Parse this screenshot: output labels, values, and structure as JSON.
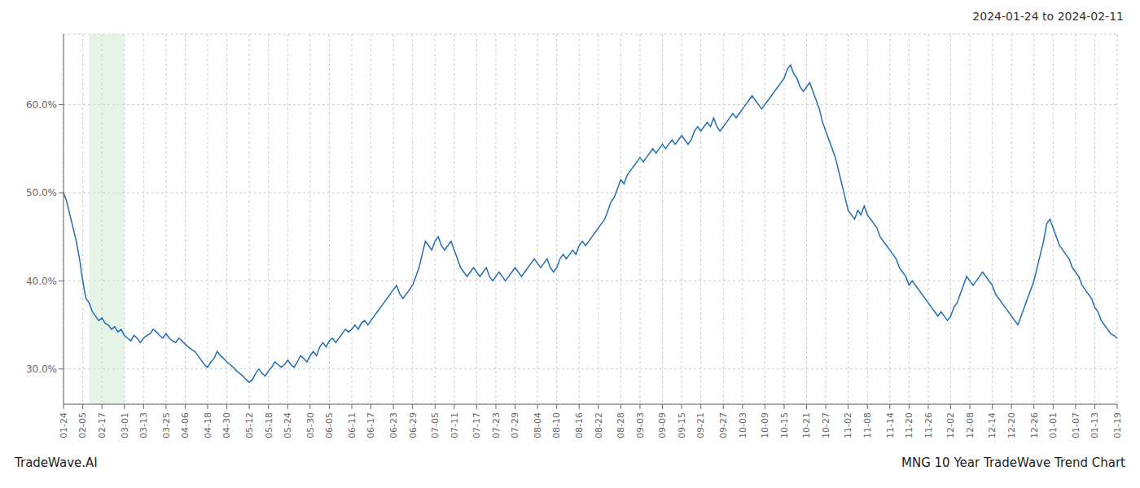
{
  "chart_data": {
    "type": "line",
    "title": "2024-01-24 to 2024-02-11",
    "annotations": [
      "TradeWave.AI",
      "MNG 10 Year TradeWave Trend Chart"
    ],
    "categories": [
      "01-24",
      null,
      null,
      null,
      null,
      null,
      "02-05",
      null,
      null,
      null,
      null,
      null,
      "02-17",
      null,
      null,
      null,
      null,
      null,
      null,
      "03-01",
      null,
      null,
      null,
      null,
      null,
      "03-13",
      null,
      null,
      null,
      null,
      null,
      null,
      "03-25",
      null,
      null,
      null,
      null,
      null,
      "04-06",
      null,
      null,
      null,
      null,
      null,
      null,
      "04-18",
      null,
      null,
      null,
      null,
      null,
      "04-30",
      null,
      null,
      null,
      null,
      null,
      null,
      "05-12",
      null,
      null,
      null,
      null,
      null,
      "05-18",
      null,
      null,
      null,
      null,
      null,
      "05-24",
      null,
      null,
      null,
      null,
      null,
      null,
      "05-30",
      null,
      null,
      null,
      null,
      null,
      "06-05",
      null,
      null,
      null,
      null,
      null,
      null,
      "06-11",
      null,
      null,
      null,
      null,
      null,
      "06-17",
      null,
      null,
      null,
      null,
      null,
      null,
      "06-23",
      null,
      null,
      null,
      null,
      null,
      "06-29",
      null,
      null,
      null,
      null,
      null,
      null,
      "07-05",
      null,
      null,
      null,
      null,
      null,
      "07-11",
      null,
      null,
      null,
      null,
      null,
      null,
      "07-17",
      null,
      null,
      null,
      null,
      null,
      "07-23",
      null,
      null,
      null,
      null,
      null,
      "07-29",
      null,
      null,
      null,
      null,
      null,
      null,
      "08-04",
      null,
      null,
      null,
      null,
      null,
      "08-10",
      null,
      null,
      null,
      null,
      null,
      null,
      "08-16",
      null,
      null,
      null,
      null,
      null,
      "08-22",
      null,
      null,
      null,
      null,
      null,
      null,
      "08-28",
      null,
      null,
      null,
      null,
      null,
      "09-03",
      null,
      null,
      null,
      null,
      null,
      null,
      "09-09",
      null,
      null,
      null,
      null,
      null,
      "09-15",
      null,
      null,
      null,
      null,
      null,
      "09-21",
      null,
      null,
      null,
      null,
      null,
      null,
      "09-27",
      null,
      null,
      null,
      null,
      null,
      "10-03",
      null,
      null,
      null,
      null,
      null,
      null,
      "10-09",
      null,
      null,
      null,
      null,
      null,
      "10-15",
      null,
      null,
      null,
      null,
      null,
      null,
      "10-21",
      null,
      null,
      null,
      null,
      null,
      "10-27",
      null,
      null,
      null,
      null,
      null,
      null,
      "11-02",
      null,
      null,
      null,
      null,
      null,
      "11-08",
      null,
      null,
      null,
      null,
      null,
      null,
      "11-14",
      null,
      null,
      null,
      null,
      null,
      "11-20",
      null,
      null,
      null,
      null,
      null,
      "11-26",
      null,
      null,
      null,
      null,
      null,
      null,
      "12-02",
      null,
      null,
      null,
      null,
      null,
      "12-08",
      null,
      null,
      null,
      null,
      null,
      null,
      "12-14",
      null,
      null,
      null,
      null,
      null,
      "12-20",
      null,
      null,
      null,
      null,
      null,
      null,
      "12-26",
      null,
      null,
      null,
      null,
      null,
      "01-01",
      null,
      null,
      null,
      null,
      null,
      null,
      "01-07",
      null,
      null,
      null,
      null,
      null,
      "01-13",
      null,
      null,
      null,
      null,
      null,
      null,
      "01-19"
    ],
    "values": [
      50.0,
      49.0,
      47.5,
      46.0,
      44.5,
      42.5,
      40.0,
      38.0,
      37.5,
      36.5,
      36.0,
      35.5,
      35.8,
      35.2,
      35.0,
      34.5,
      34.8,
      34.2,
      34.5,
      33.8,
      33.5,
      33.2,
      33.8,
      33.5,
      33.0,
      33.5,
      33.8,
      34.0,
      34.5,
      34.2,
      33.8,
      33.5,
      34.0,
      33.5,
      33.2,
      33.0,
      33.5,
      33.2,
      32.8,
      32.5,
      32.2,
      32.0,
      31.5,
      31.0,
      30.5,
      30.2,
      30.8,
      31.2,
      32.0,
      31.5,
      31.2,
      30.8,
      30.5,
      30.2,
      29.8,
      29.5,
      29.2,
      28.8,
      28.5,
      28.8,
      29.5,
      30.0,
      29.5,
      29.2,
      29.8,
      30.2,
      30.8,
      30.5,
      30.2,
      30.5,
      31.0,
      30.5,
      30.2,
      30.8,
      31.5,
      31.2,
      30.8,
      31.5,
      32.0,
      31.5,
      32.5,
      33.0,
      32.5,
      33.2,
      33.5,
      33.0,
      33.5,
      34.0,
      34.5,
      34.2,
      34.5,
      35.0,
      34.5,
      35.2,
      35.5,
      35.0,
      35.5,
      36.0,
      36.5,
      37.0,
      37.5,
      38.0,
      38.5,
      39.0,
      39.5,
      38.5,
      38.0,
      38.5,
      39.0,
      39.5,
      40.5,
      41.5,
      43.0,
      44.5,
      44.0,
      43.5,
      44.5,
      45.0,
      44.0,
      43.5,
      44.0,
      44.5,
      43.5,
      42.5,
      41.5,
      41.0,
      40.5,
      41.0,
      41.5,
      41.0,
      40.5,
      41.0,
      41.5,
      40.5,
      40.0,
      40.5,
      41.0,
      40.5,
      40.0,
      40.5,
      41.0,
      41.5,
      41.0,
      40.5,
      41.0,
      41.5,
      42.0,
      42.5,
      42.0,
      41.5,
      42.0,
      42.5,
      41.5,
      41.0,
      41.5,
      42.5,
      43.0,
      42.5,
      43.0,
      43.5,
      43.0,
      44.0,
      44.5,
      44.0,
      44.5,
      45.0,
      45.5,
      46.0,
      46.5,
      47.0,
      48.0,
      49.0,
      49.5,
      50.5,
      51.5,
      51.0,
      52.0,
      52.5,
      53.0,
      53.5,
      54.0,
      53.5,
      54.0,
      54.5,
      55.0,
      54.5,
      55.0,
      55.5,
      55.0,
      55.5,
      56.0,
      55.5,
      56.0,
      56.5,
      56.0,
      55.5,
      56.0,
      57.0,
      57.5,
      57.0,
      57.5,
      58.0,
      57.5,
      58.5,
      57.5,
      57.0,
      57.5,
      58.0,
      58.5,
      59.0,
      58.5,
      59.0,
      59.5,
      60.0,
      60.5,
      61.0,
      60.5,
      60.0,
      59.5,
      60.0,
      60.5,
      61.0,
      61.5,
      62.0,
      62.5,
      63.0,
      64.0,
      64.5,
      63.5,
      63.0,
      62.0,
      61.5,
      62.0,
      62.5,
      61.5,
      60.5,
      59.5,
      58.0,
      57.0,
      56.0,
      55.0,
      54.0,
      52.5,
      51.0,
      49.5,
      48.0,
      47.5,
      47.0,
      48.0,
      47.5,
      48.5,
      47.5,
      47.0,
      46.5,
      46.0,
      45.0,
      44.5,
      44.0,
      43.5,
      43.0,
      42.5,
      41.5,
      41.0,
      40.5,
      39.5,
      40.0,
      39.5,
      39.0,
      38.5,
      38.0,
      37.5,
      37.0,
      36.5,
      36.0,
      36.5,
      36.0,
      35.5,
      36.0,
      37.0,
      37.5,
      38.5,
      39.5,
      40.5,
      40.0,
      39.5,
      40.0,
      40.5,
      41.0,
      40.5,
      40.0,
      39.5,
      38.5,
      38.0,
      37.5,
      37.0,
      36.5,
      36.0,
      35.5,
      35.0,
      36.0,
      37.0,
      38.0,
      39.0,
      40.0,
      41.5,
      43.0,
      44.5,
      46.5,
      47.0,
      46.0,
      45.0,
      44.0,
      43.5,
      43.0,
      42.5,
      41.5,
      41.0,
      40.5,
      39.5,
      39.0,
      38.5,
      38.0,
      37.0,
      36.5,
      35.5,
      35.0,
      34.5,
      34.0,
      33.8,
      33.5
    ],
    "color": "#1f6eb5",
    "highlight": {
      "start": 8,
      "end": 19,
      "color": "#c8e6c9"
    },
    "ylim": [
      26.0,
      68.0
    ],
    "yticks": [
      {
        "value": 30.0,
        "label": "30.0%"
      },
      {
        "value": 40.0,
        "label": "40.0%"
      },
      {
        "value": 50.0,
        "label": "50.0%"
      },
      {
        "value": 60.0,
        "label": "60.0%"
      }
    ],
    "grid": true
  }
}
